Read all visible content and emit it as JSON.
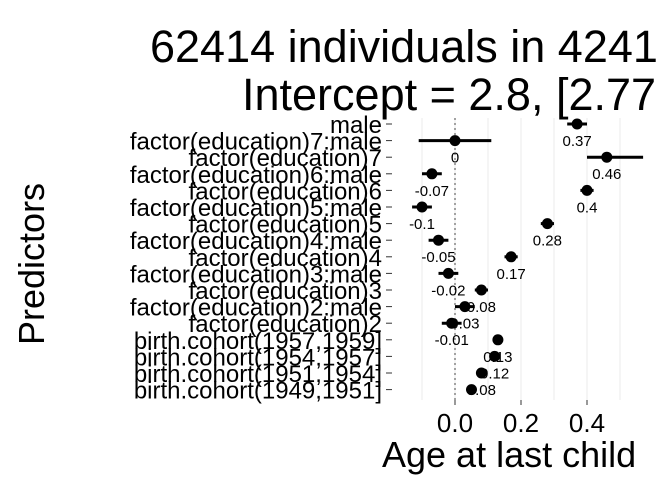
{
  "chart_data": {
    "type": "coefficient-plot",
    "title_line1": "62414 individuals in 4241",
    "title_line2": "Intercept = 2.8, [2.77",
    "xlabel": "Age at last child",
    "ylabel": "Predictors",
    "xticks": [
      "0.0",
      "0.2",
      "0.4"
    ],
    "xlim": [
      -0.15,
      0.55
    ],
    "reference_line": 0,
    "grid": "vertical",
    "categories": [
      "male",
      "factor(education)7:male",
      "factor(education)7",
      "factor(education)6:male",
      "factor(education)6",
      "factor(education)5:male",
      "factor(education)5",
      "factor(education)4:male",
      "factor(education)4",
      "factor(education)3:male",
      "factor(education)3",
      "factor(education)2:male",
      "factor(education)2",
      "birth.cohort(1957,1959]",
      "birth.cohort(1954,1957]",
      "birth.cohort(1951,1954]",
      "birth.cohort(1949,1951]"
    ],
    "estimates": [
      0.37,
      0,
      0.46,
      -0.07,
      0.4,
      -0.1,
      0.28,
      -0.05,
      0.17,
      -0.02,
      0.08,
      0.03,
      -0.01,
      0.13,
      0.12,
      0.08,
      0.05
    ],
    "lower": [
      0.34,
      -0.11,
      0.4,
      -0.1,
      0.38,
      -0.13,
      0.26,
      -0.08,
      0.15,
      -0.05,
      0.06,
      0.0,
      -0.04,
      0.12,
      0.11,
      0.07,
      0.04
    ],
    "upper": [
      0.4,
      0.11,
      0.57,
      -0.04,
      0.42,
      -0.07,
      0.3,
      -0.02,
      0.19,
      0.01,
      0.1,
      0.06,
      0.02,
      0.14,
      0.13,
      0.09,
      0.06
    ],
    "labels": [
      "0.37",
      "0",
      "0.46",
      "-0.07",
      "0.4",
      "-0.1",
      "0.28",
      "-0.05",
      "0.17",
      "-0.02",
      "0.08",
      "0.03",
      "-0.01",
      "0.13",
      "0.12",
      "0.08",
      ""
    ]
  }
}
